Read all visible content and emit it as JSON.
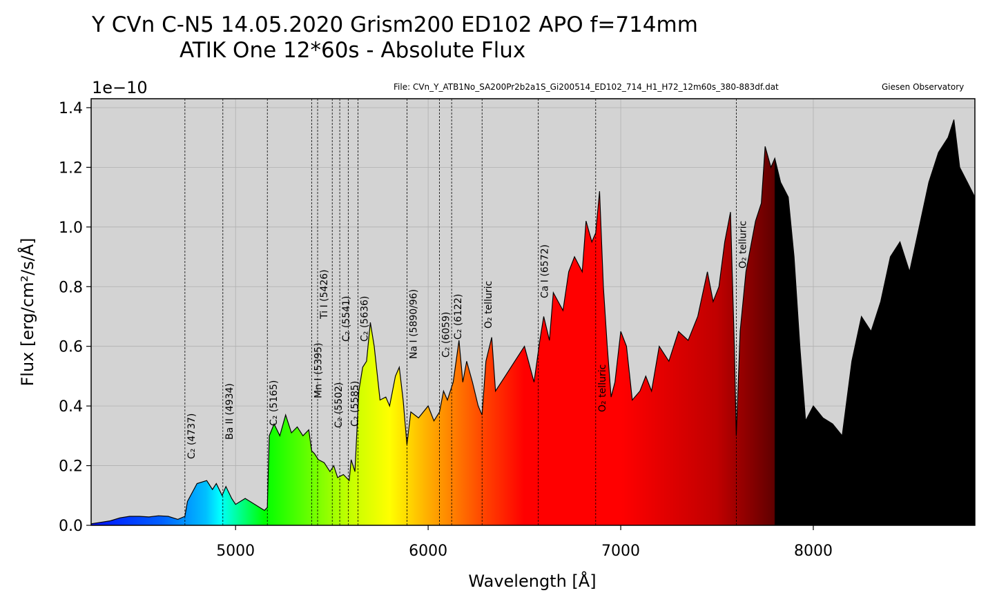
{
  "chart_data": {
    "type": "area",
    "title": "Y CVn   C-N5  14.05.2020   Grism200  ED102 APO  f=714mm",
    "subtitle": "ATIK One  12*60s - Absolute Flux",
    "file_note": "File: CVn_Y_ATB1No_SA200Pr2b2a1S_Gi200514_ED102_714_H1_H72_12m60s_380-883df.dat",
    "credit": "Giesen Observatory",
    "y_offset_label": "1e−10",
    "x_label": "Wavelength [Å]",
    "y_label": "Flux [erg/cm²/s/Å]",
    "line_color": "#000000",
    "background": "#d3d3d3",
    "grid": true,
    "xlim": [
      4250,
      8839
    ],
    "ylim": [
      0,
      1.43
    ],
    "xticks": [
      5000,
      6000,
      7000,
      8000
    ],
    "yticks": [
      {
        "value": 0,
        "label": "0.0"
      },
      0.2,
      0.4,
      0.6,
      0.8,
      {
        "value": 1,
        "label": "1.0"
      },
      1.2,
      1.4
    ],
    "x": [
      4250,
      4300,
      4350,
      4400,
      4450,
      4500,
      4550,
      4600,
      4650,
      4700,
      4737,
      4750,
      4800,
      4850,
      4880,
      4900,
      4930,
      4950,
      4980,
      5000,
      5050,
      5100,
      5150,
      5165,
      5175,
      5200,
      5230,
      5260,
      5290,
      5320,
      5350,
      5380,
      5395,
      5410,
      5430,
      5460,
      5490,
      5510,
      5530,
      5560,
      5590,
      5600,
      5620,
      5640,
      5660,
      5680,
      5700,
      5720,
      5750,
      5780,
      5800,
      5830,
      5850,
      5870,
      5890,
      5910,
      5950,
      6000,
      6030,
      6059,
      6080,
      6100,
      6130,
      6160,
      6180,
      6200,
      6230,
      6260,
      6280,
      6300,
      6330,
      6350,
      6400,
      6450,
      6500,
      6550,
      6580,
      6600,
      6630,
      6650,
      6700,
      6730,
      6760,
      6800,
      6820,
      6850,
      6870,
      6890,
      6910,
      6930,
      6950,
      6970,
      7000,
      7030,
      7060,
      7100,
      7130,
      7160,
      7200,
      7250,
      7300,
      7350,
      7400,
      7450,
      7480,
      7510,
      7540,
      7570,
      7590,
      7600,
      7620,
      7650,
      7700,
      7730,
      7750,
      7780,
      7800,
      7830,
      7870,
      7900,
      7930,
      7960,
      8000,
      8050,
      8100,
      8150,
      8200,
      8250,
      8300,
      8350,
      8400,
      8450,
      8500,
      8550,
      8600,
      8650,
      8700,
      8730,
      8760,
      8800,
      8839
    ],
    "values": [
      0.005,
      0.01,
      0.015,
      0.025,
      0.03,
      0.03,
      0.028,
      0.032,
      0.03,
      0.02,
      0.03,
      0.08,
      0.14,
      0.15,
      0.12,
      0.14,
      0.1,
      0.13,
      0.09,
      0.07,
      0.09,
      0.07,
      0.05,
      0.06,
      0.3,
      0.34,
      0.3,
      0.37,
      0.31,
      0.33,
      0.3,
      0.32,
      0.25,
      0.24,
      0.22,
      0.21,
      0.18,
      0.2,
      0.16,
      0.17,
      0.15,
      0.22,
      0.18,
      0.45,
      0.53,
      0.55,
      0.68,
      0.6,
      0.42,
      0.43,
      0.4,
      0.5,
      0.53,
      0.42,
      0.27,
      0.38,
      0.36,
      0.4,
      0.35,
      0.38,
      0.45,
      0.42,
      0.48,
      0.62,
      0.48,
      0.55,
      0.48,
      0.4,
      0.37,
      0.55,
      0.63,
      0.45,
      0.5,
      0.55,
      0.6,
      0.48,
      0.62,
      0.7,
      0.62,
      0.78,
      0.72,
      0.85,
      0.9,
      0.85,
      1.02,
      0.95,
      0.98,
      1.12,
      0.8,
      0.6,
      0.43,
      0.48,
      0.65,
      0.6,
      0.42,
      0.45,
      0.5,
      0.45,
      0.6,
      0.55,
      0.65,
      0.62,
      0.7,
      0.85,
      0.75,
      0.8,
      0.95,
      1.05,
      0.6,
      0.3,
      0.65,
      0.85,
      1.02,
      1.08,
      1.27,
      1.2,
      1.23,
      1.15,
      1.1,
      0.9,
      0.6,
      0.35,
      0.4,
      0.36,
      0.34,
      0.3,
      0.55,
      0.7,
      0.65,
      0.75,
      0.9,
      0.95,
      0.85,
      1.0,
      1.15,
      1.25,
      1.3,
      1.36,
      1.2,
      1.15,
      1.1
    ],
    "lines": [
      {
        "wavelength": 4737,
        "label": "C₂ (4737)"
      },
      {
        "wavelength": 4934,
        "label": "Ba II (4934)"
      },
      {
        "wavelength": 5165,
        "label": "C₂ (5165)"
      },
      {
        "wavelength": 5395,
        "label": "Mn I (5395)"
      },
      {
        "wavelength": 5426,
        "label": "Ti I (5426)"
      },
      {
        "wavelength": 5502,
        "label": "C₂ (5502)"
      },
      {
        "wavelength": 5541,
        "label": "C₂ (5541)"
      },
      {
        "wavelength": 5585,
        "label": "C₂ (5585)"
      },
      {
        "wavelength": 5636,
        "label": "C₂ (5636)"
      },
      {
        "wavelength": 5890,
        "label": "Na I (5890/96)"
      },
      {
        "wavelength": 6059,
        "label": "C₂ (6059)"
      },
      {
        "wavelength": 6122,
        "label": "C₂ (6122)"
      },
      {
        "wavelength": 6280,
        "label": "O₂ telluric"
      },
      {
        "wavelength": 6572,
        "label": "Ca I (6572)"
      },
      {
        "wavelength": 6870,
        "label": "O₂ telluric"
      },
      {
        "wavelength": 7600,
        "label": "O₂ telluric"
      }
    ]
  }
}
